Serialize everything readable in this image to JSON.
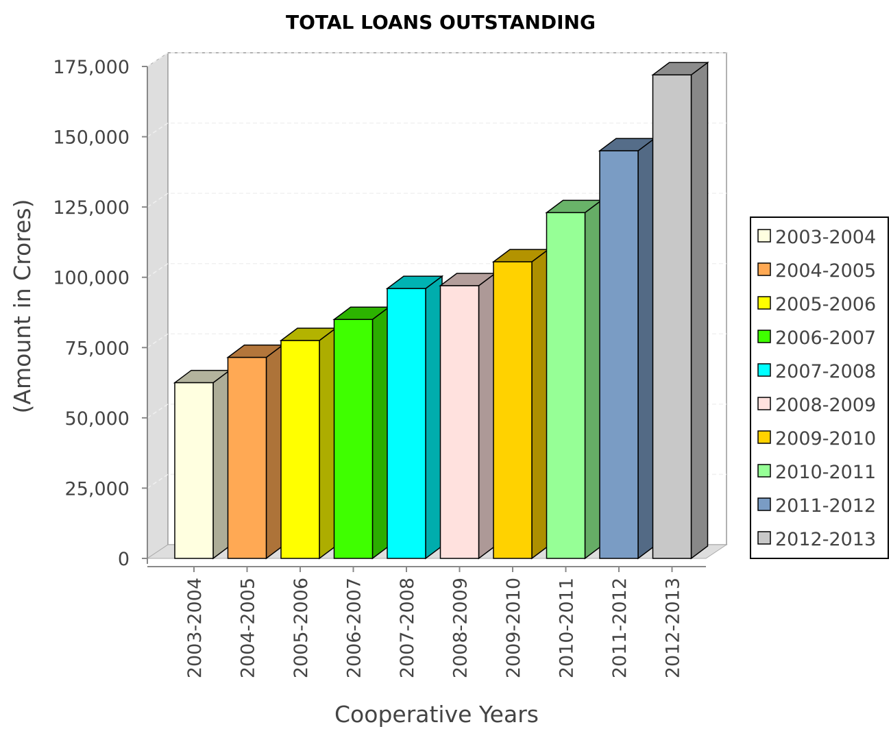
{
  "chart_data": {
    "type": "bar",
    "title": "TOTAL LOANS OUTSTANDING",
    "xlabel": "Cooperative Years",
    "ylabel": "(Amount in Crores)",
    "ylim": [
      0,
      175000
    ],
    "yticks": [
      {
        "value": 0,
        "label": "0"
      },
      {
        "value": 25000,
        "label": "25,000"
      },
      {
        "value": 50000,
        "label": "50,000"
      },
      {
        "value": 75000,
        "label": "75,000"
      },
      {
        "value": 100000,
        "label": "100,000"
      },
      {
        "value": 125000,
        "label": "125,000"
      },
      {
        "value": 150000,
        "label": "150,000"
      },
      {
        "value": 175000,
        "label": "175,000"
      }
    ],
    "categories": [
      "2003-2004",
      "2004-2005",
      "2005-2006",
      "2006-2007",
      "2007-2008",
      "2008-2009",
      "2009-2010",
      "2010-2011",
      "2011-2012",
      "2012-2013"
    ],
    "values": [
      62500,
      71500,
      77500,
      85000,
      96000,
      97000,
      105500,
      123000,
      145000,
      172000
    ],
    "colors": [
      "#FFFFE0",
      "#FFA954",
      "#FFFF00",
      "#3FFF00",
      "#00FFFF",
      "#FFE1DE",
      "#FFD200",
      "#96FF96",
      "#7A9CC4",
      "#C8C8C8"
    ],
    "legend": {
      "position": "right",
      "entries": [
        "2003-2004",
        "2004-2005",
        "2005-2006",
        "2006-2007",
        "2007-2008",
        "2008-2009",
        "2009-2010",
        "2010-2011",
        "2011-2012",
        "2012-2013"
      ]
    },
    "grid": true,
    "style": "3d"
  }
}
